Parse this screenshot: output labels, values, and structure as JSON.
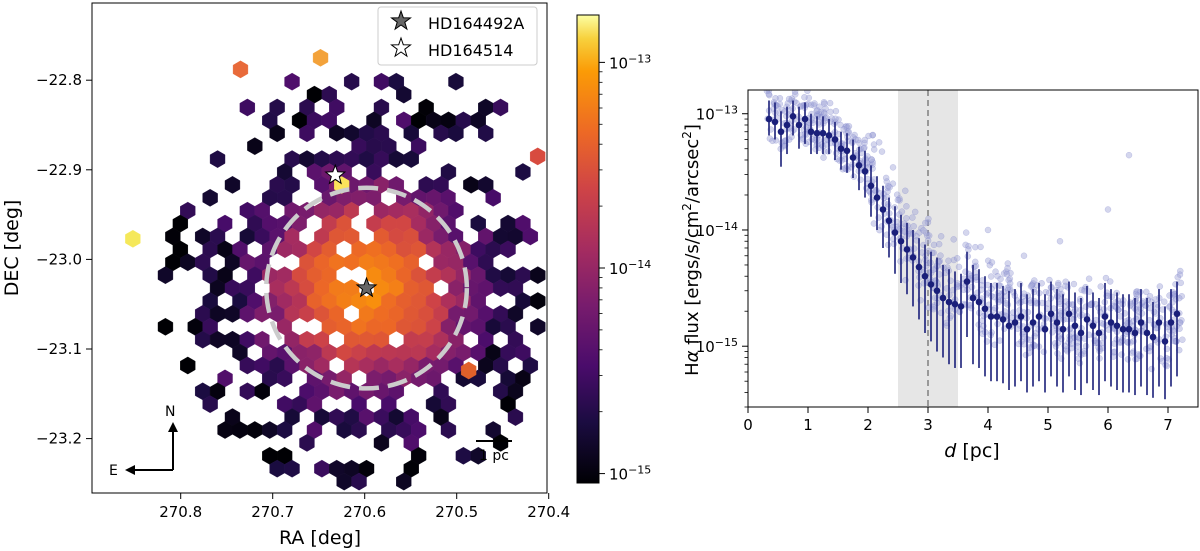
{
  "chart_data": [
    {
      "type": "heatmap",
      "subtype": "hexbin-sky-map",
      "xlabel": "RA [deg]",
      "ylabel": "DEC [deg]",
      "xlim": [
        270.88,
        270.38
      ],
      "ylim": [
        -23.265,
        -22.725
      ],
      "xticks": [
        270.8,
        270.7,
        270.6,
        270.5,
        270.4
      ],
      "xtick_labels": [
        "270.8",
        "270.7",
        "270.6",
        "270.5",
        "270.4"
      ],
      "yticks": [
        -22.8,
        -22.9,
        -23.0,
        -23.1,
        -23.2
      ],
      "ytick_labels": [
        "−22.8",
        "−22.9",
        "−23.0",
        "−23.1",
        "−23.2"
      ],
      "legend": {
        "position": "top-right",
        "entries": [
          {
            "label": "HD164492A",
            "marker": "filled-star",
            "color": "#666666"
          },
          {
            "label": "HD164514",
            "marker": "open-star",
            "color": "#ffffff"
          }
        ]
      },
      "stars": [
        {
          "name": "HD164492A",
          "ra": 270.598,
          "dec": -23.032
        },
        {
          "name": "HD164514",
          "ra": 270.632,
          "dec": -22.906
        }
      ],
      "circle": {
        "center_ra": 270.598,
        "center_dec": -23.032,
        "radius_deg": 0.109,
        "style": "dashed",
        "color": "#cccccc"
      },
      "scale_bar": {
        "label": "1 pc"
      },
      "compass": {
        "north": "N",
        "east": "E"
      },
      "colorbar": {
        "colormap": "inferno",
        "scale": "log",
        "range": [
          9e-16,
          1.7e-13
        ],
        "ticks": [
          {
            "value": 1e-13,
            "base": "10",
            "exp": "−13"
          },
          {
            "value": 1e-14,
            "base": "10",
            "exp": "−14"
          },
          {
            "value": 1e-15,
            "base": "10",
            "exp": "−15"
          }
        ]
      }
    },
    {
      "type": "scatter",
      "subtype": "radial-profile",
      "xlabel_italic": "d",
      "xlabel_rest": " [pc]",
      "ylabel_prefix": "H",
      "ylabel_alpha": "α",
      "ylabel_main": " flux [ergs/s/cm",
      "ylabel_mid": "/arcsec",
      "ylabel_sup": "2",
      "ylabel_end": "]",
      "xlim": [
        0,
        7.5
      ],
      "ylim": [
        3e-16,
        1.6e-13
      ],
      "yscale": "log",
      "xticks": [
        0,
        1,
        2,
        3,
        4,
        5,
        6,
        7
      ],
      "xtick_labels": [
        "0",
        "1",
        "2",
        "3",
        "4",
        "5",
        "6",
        "7"
      ],
      "yticks": [
        {
          "value": 1e-13,
          "base": "10",
          "exp": "−13"
        },
        {
          "value": 1e-14,
          "base": "10",
          "exp": "−14"
        },
        {
          "value": 1e-15,
          "base": "10",
          "exp": "−15"
        }
      ],
      "shaded_band": [
        2.5,
        3.5
      ],
      "vline_dashed": 3.0,
      "binned_profile": {
        "color": "#1a1f7a",
        "x": [
          0.35,
          0.45,
          0.55,
          0.65,
          0.75,
          0.85,
          0.95,
          1.05,
          1.15,
          1.25,
          1.35,
          1.45,
          1.55,
          1.65,
          1.75,
          1.85,
          1.95,
          2.05,
          2.15,
          2.25,
          2.35,
          2.45,
          2.55,
          2.65,
          2.75,
          2.85,
          2.95,
          3.05,
          3.15,
          3.25,
          3.35,
          3.45,
          3.55,
          3.65,
          3.75,
          3.85,
          3.95,
          4.05,
          4.15,
          4.25,
          4.35,
          4.45,
          4.55,
          4.65,
          4.75,
          4.85,
          4.95,
          5.05,
          5.15,
          5.25,
          5.35,
          5.45,
          5.55,
          5.65,
          5.75,
          5.85,
          5.95,
          6.05,
          6.15,
          6.25,
          6.35,
          6.45,
          6.55,
          6.65,
          6.75,
          6.85,
          6.95,
          7.05,
          7.15
        ],
        "y": [
          9e-14,
          8.5e-14,
          7e-14,
          8e-14,
          9.5e-14,
          8e-14,
          9e-14,
          7e-14,
          6.8e-14,
          6.8e-14,
          6.5e-14,
          6e-14,
          5e-14,
          4.8e-14,
          4.2e-14,
          3.6e-14,
          3.2e-14,
          2.4e-14,
          1.9e-14,
          1.5e-14,
          1.2e-14,
          9.5e-15,
          8e-15,
          6.8e-15,
          5.8e-15,
          4.8e-15,
          4e-15,
          3.4e-15,
          3e-15,
          2.6e-15,
          2.4e-15,
          2.3e-15,
          2.2e-15,
          3.6e-15,
          2.6e-15,
          2.4e-15,
          2.1e-15,
          1.8e-15,
          1.8e-15,
          1.7e-15,
          1.5e-15,
          1.6e-15,
          1.8e-15,
          1.4e-15,
          1.6e-15,
          1.8e-15,
          1.4e-15,
          1.9e-15,
          1.6e-15,
          1.4e-15,
          1.9e-15,
          1.5e-15,
          1.3e-15,
          1.7e-15,
          1.5e-15,
          1.3e-15,
          1.8e-15,
          1.6e-15,
          1.5e-15,
          1.4e-15,
          1.4e-15,
          1.3e-15,
          1.6e-15,
          1.3e-15,
          1.2e-15,
          1.6e-15,
          1.1e-15,
          1.6e-15,
          1.9e-15
        ],
        "err_lo": [
          6.5e-14,
          6e-14,
          3.5e-14,
          4.5e-14,
          6.5e-14,
          5e-14,
          5.5e-14,
          4.5e-14,
          4.5e-14,
          4.5e-14,
          4.5e-14,
          4e-14,
          3.3e-14,
          3.1e-14,
          2.8e-14,
          2.2e-14,
          1.9e-14,
          1.3e-14,
          1e-14,
          7e-15,
          5.8e-15,
          4.2e-15,
          3.5e-15,
          2.8e-15,
          2.2e-15,
          1.7e-15,
          1.3e-15,
          1.1e-15,
          9e-16,
          8e-16,
          7e-16,
          6.5e-16,
          6.5e-16,
          1.2e-15,
          7e-16,
          6.5e-16,
          5.5e-16,
          5e-16,
          5e-16,
          4.8e-16,
          4.2e-16,
          4.5e-16,
          5e-16,
          4e-16,
          4.5e-16,
          5e-16,
          4e-16,
          5.5e-16,
          4.5e-16,
          4e-16,
          5.5e-16,
          4.2e-16,
          3.8e-16,
          4.8e-16,
          4.2e-16,
          3.8e-16,
          5e-16,
          4.5e-16,
          4.2e-16,
          4e-16,
          4e-16,
          3.8e-16,
          4.5e-16,
          3.8e-16,
          3.6e-16,
          4.5e-16,
          3.5e-16,
          4.5e-16,
          5.5e-16
        ],
        "err_hi": [
          1.3e-13,
          1.25e-13,
          1.05e-13,
          1.15e-13,
          1.3e-13,
          1.15e-13,
          1.25e-13,
          1e-13,
          9.5e-14,
          9.5e-14,
          9e-14,
          8.5e-14,
          7e-14,
          6.8e-14,
          6e-14,
          5.2e-14,
          4.8e-14,
          3.6e-14,
          2.9e-14,
          2.4e-14,
          1.9e-14,
          1.6e-14,
          1.35e-14,
          1.15e-14,
          1e-14,
          8.5e-15,
          7.5e-15,
          6.5e-15,
          5.8e-15,
          5e-15,
          4.6e-15,
          4.4e-15,
          4.2e-15,
          6.5e-15,
          5e-15,
          4.6e-15,
          4e-15,
          3.5e-15,
          3.5e-15,
          3.3e-15,
          3e-15,
          3.1e-15,
          3.5e-15,
          2.8e-15,
          3.1e-15,
          3.5e-15,
          2.8e-15,
          3.6e-15,
          3.1e-15,
          2.8e-15,
          3.6e-15,
          2.9e-15,
          2.6e-15,
          3.3e-15,
          2.9e-15,
          2.6e-15,
          3.5e-15,
          3.1e-15,
          2.9e-15,
          2.8e-15,
          2.8e-15,
          2.6e-15,
          3.1e-15,
          2.6e-15,
          2.4e-15,
          3.1e-15,
          2.2e-15,
          3.1e-15,
          3.6e-15
        ]
      },
      "scatter_points": {
        "color": "#9fa3d6",
        "description": "individual hexbin fluxes (semi-transparent)"
      }
    }
  ]
}
